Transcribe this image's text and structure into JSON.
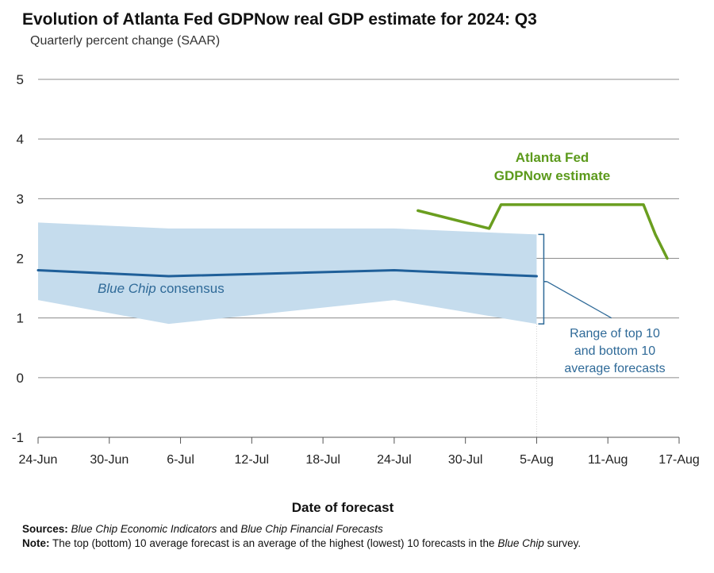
{
  "chart_data": {
    "type": "line",
    "title": "Evolution of Atlanta Fed GDPNow real GDP estimate for 2024: Q3",
    "subtitle": "Quarterly percent change (SAAR)",
    "xlabel": "Date of forecast",
    "ylabel": "",
    "ylim": [
      -1,
      5
    ],
    "yticks": [
      "5",
      "4",
      "3",
      "2",
      "1",
      "0",
      "-1"
    ],
    "x_range_days": [
      0,
      54
    ],
    "xticks": [
      {
        "day": 0,
        "label": "24-Jun"
      },
      {
        "day": 6,
        "label": "30-Jun"
      },
      {
        "day": 12,
        "label": "6-Jul"
      },
      {
        "day": 18,
        "label": "12-Jul"
      },
      {
        "day": 24,
        "label": "18-Jul"
      },
      {
        "day": 30,
        "label": "24-Jul"
      },
      {
        "day": 36,
        "label": "30-Jul"
      },
      {
        "day": 42,
        "label": "5-Aug"
      },
      {
        "day": 48,
        "label": "11-Aug"
      },
      {
        "day": 54,
        "label": "17-Aug"
      }
    ],
    "grid": true,
    "series": [
      {
        "name": "Atlanta Fed GDPNow estimate",
        "label_lines": [
          "Atlanta Fed",
          "GDPNow estimate"
        ],
        "color": "#6a9e1f",
        "x": [
          32,
          38,
          39,
          51,
          52,
          53
        ],
        "y": [
          2.8,
          2.5,
          2.9,
          2.9,
          2.4,
          2.0
        ]
      },
      {
        "name": "Blue Chip consensus",
        "label_italic": "Blue Chip",
        "label_rest": " consensus",
        "color": "#1f5f99",
        "x": [
          0,
          11,
          30,
          42
        ],
        "y": [
          1.8,
          1.7,
          1.8,
          1.7
        ]
      }
    ],
    "range_band": {
      "name": "Range of top 10 and bottom 10 average forecasts",
      "label_lines": [
        "Range of top 10",
        "and bottom 10",
        "average forecasts"
      ],
      "color": "#c5dced",
      "x": [
        0,
        11,
        30,
        42
      ],
      "upper": [
        2.6,
        2.5,
        2.5,
        2.4
      ],
      "lower": [
        1.3,
        0.9,
        1.3,
        0.9
      ]
    }
  },
  "footer": {
    "sources_label": "Sources:",
    "sources_title_1": "Blue Chip Economic Indicators",
    "sources_and": " and ",
    "sources_title_2": "Blue Chip Financial Forecasts",
    "note_label": "Note:",
    "note_text": " The top (bottom) 10 average forecast is an average of the highest (lowest) 10 forecasts in the ",
    "note_italic": "Blue Chip",
    "note_end": " survey."
  }
}
